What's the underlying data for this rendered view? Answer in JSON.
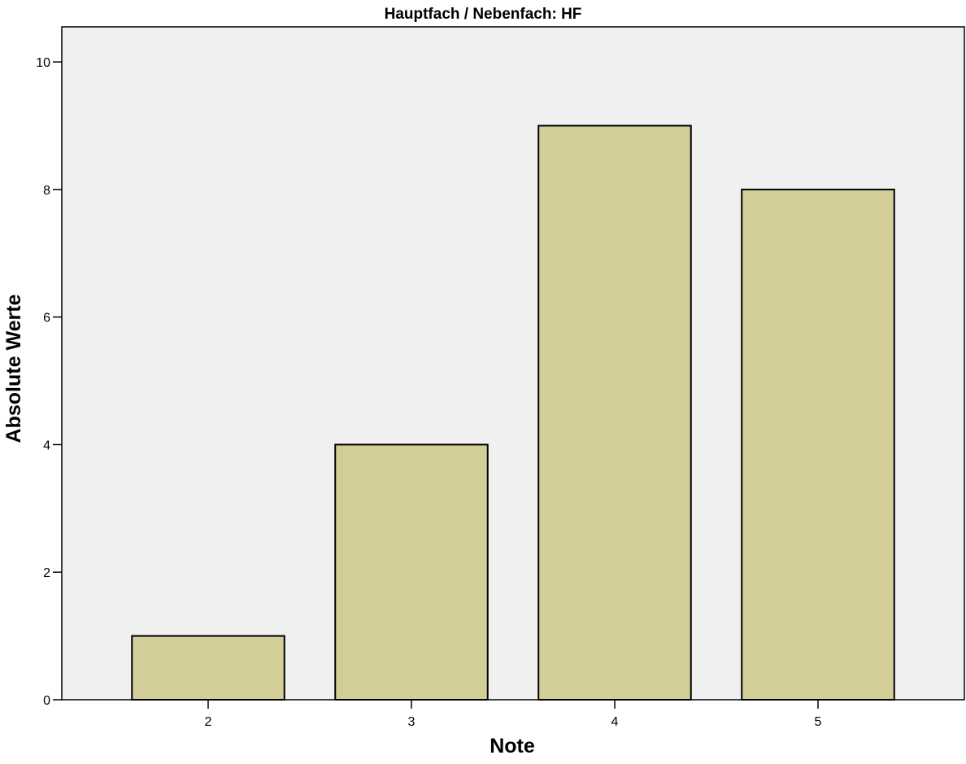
{
  "chart_data": {
    "type": "bar",
    "title": "Hauptfach / Nebenfach: HF",
    "xlabel": "Note",
    "ylabel": "Absolute Werte",
    "categories": [
      "2",
      "3",
      "4",
      "5"
    ],
    "values": [
      1,
      4,
      9,
      8
    ],
    "ylim": [
      0,
      10.55
    ],
    "yticks": [
      0,
      2,
      4,
      6,
      8,
      10
    ],
    "ytick_labels": [
      "0",
      "2",
      "4",
      "6",
      "8",
      "10"
    ],
    "grid": false,
    "legend": "none",
    "colors": {
      "bar_fill": "#d3ce98",
      "bar_stroke": "#000000",
      "plot_background": "#f0f0f0",
      "page_background": "#ffffff"
    }
  }
}
